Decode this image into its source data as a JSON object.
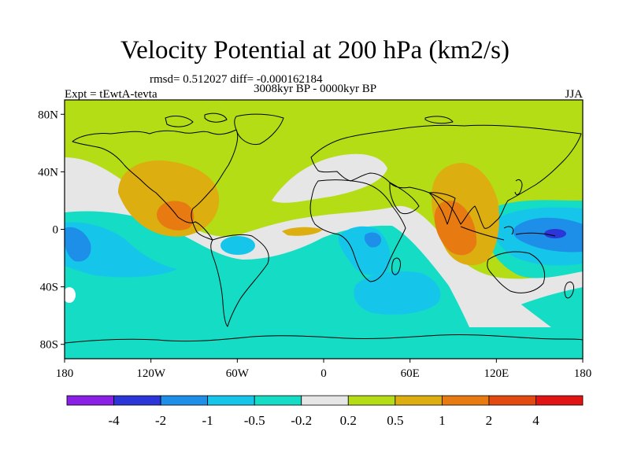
{
  "title": "Velocity Potential at 200 hPa (km2/s)",
  "stats_line": "rmsd= 0.512027  diff= -0.000162184",
  "period_line": "3008kyr BP - 0000kyr BP",
  "left_label": "Expt = tEwtA-tevta",
  "right_label": "JJA",
  "axes": {
    "lon_ticks": [
      {
        "value": -180,
        "label": "180"
      },
      {
        "value": -120,
        "label": "120W"
      },
      {
        "value": -60,
        "label": "60W"
      },
      {
        "value": 0,
        "label": "0"
      },
      {
        "value": 60,
        "label": "60E"
      },
      {
        "value": 120,
        "label": "120E"
      },
      {
        "value": 180,
        "label": "180"
      }
    ],
    "lat_ticks": [
      {
        "value": 80,
        "label": "80N"
      },
      {
        "value": 40,
        "label": "40N"
      },
      {
        "value": 0,
        "label": "0"
      },
      {
        "value": -40,
        "label": "40S"
      },
      {
        "value": -80,
        "label": "80S"
      }
    ],
    "lon_range": [
      -180,
      180
    ],
    "lat_range": [
      -90,
      90
    ]
  },
  "colorbar": {
    "colors": [
      "#8a1fe6",
      "#2b35d8",
      "#1d8fe8",
      "#16c6ea",
      "#14dcc5",
      "#e6e6e6",
      "#b4dd16",
      "#dcae10",
      "#e87a12",
      "#e24a12",
      "#e11414"
    ],
    "labels": [
      "-4",
      "-2",
      "-1",
      "-0.5",
      "-0.2",
      "0.2",
      "0.5",
      "1",
      "2",
      "4"
    ]
  },
  "colors": {
    "background": "#b4dd16",
    "coastline": "#000000"
  }
}
